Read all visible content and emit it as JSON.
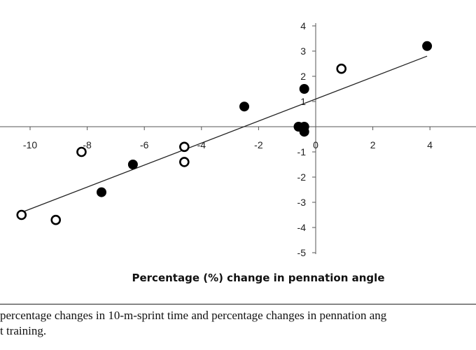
{
  "chart_data": {
    "type": "scatter",
    "xlabel": "Percentage (%) change in pennation angle",
    "ylabel": "",
    "xlim": [
      -11,
      5.5
    ],
    "ylim": [
      -5,
      4
    ],
    "x_ticks": [
      -10,
      -8,
      -6,
      -4,
      -2,
      0,
      2,
      4
    ],
    "y_ticks": [
      -5,
      -4,
      -3,
      -2,
      -1,
      1,
      2,
      3,
      4
    ],
    "grid": false,
    "series": [
      {
        "marker": "filled",
        "x": [
          3.9,
          -0.4,
          -0.6,
          -0.4,
          -0.4,
          -2.5,
          -6.4,
          -7.5
        ],
        "y": [
          3.2,
          1.5,
          0.0,
          0.0,
          -0.2,
          0.8,
          -1.5,
          -2.6
        ]
      },
      {
        "marker": "open",
        "x": [
          0.9,
          -4.6,
          -4.6,
          -8.2,
          -9.1,
          -10.3
        ],
        "y": [
          2.3,
          -0.8,
          -1.4,
          -1.0,
          -3.7,
          -3.5
        ]
      }
    ],
    "trendline": {
      "x": [
        -10.3,
        3.9
      ],
      "y": [
        -3.4,
        2.8
      ]
    }
  },
  "caption": {
    "line1": "percentage changes in 10-m-sprint time and percentage changes in pennation ang",
    "line2": "t training."
  }
}
